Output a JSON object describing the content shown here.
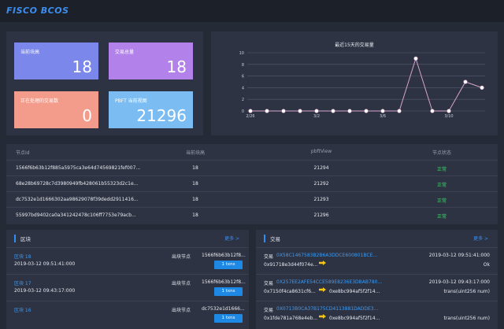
{
  "header": {
    "logo": "FISCO BCOS"
  },
  "cards": [
    {
      "label": "当前块高",
      "value": 18
    },
    {
      "label": "交易总量",
      "value": 18
    },
    {
      "label": "正在处理的交易数",
      "value": 0
    },
    {
      "label": "PBFT 当前视图",
      "value": 21296
    }
  ],
  "chart_data": {
    "type": "line",
    "title": "最近15天的交易量",
    "categories": [
      "2/26",
      null,
      null,
      null,
      "3/2",
      null,
      null,
      null,
      "3/6",
      null,
      null,
      null,
      "3/10",
      null,
      null
    ],
    "values": [
      0,
      0,
      0,
      0,
      0,
      0,
      0,
      0,
      0,
      0,
      9,
      0,
      0,
      5,
      4
    ],
    "color": "#d7a4cc",
    "ylim": [
      0,
      10
    ],
    "yticks": [
      0,
      2,
      4,
      6,
      8,
      10
    ],
    "grid": true
  },
  "node_table": {
    "columns": [
      "节点Id",
      "当前块高",
      "pbftView",
      "节点状态"
    ],
    "rows": [
      [
        "1566f6b63b12f885a5975ca3e64d74569821fef007...",
        18,
        21294,
        "正常"
      ],
      [
        "68e28b69728c7d3980949fb428061b55323d2c1e...",
        18,
        21292,
        "正常"
      ],
      [
        "dc7532e1d1666302aa98629078f39dedd2911416...",
        18,
        21293,
        "正常"
      ],
      [
        "55997bd9402ca0a341242478c106ff7753e79acb...",
        18,
        21296,
        "正常"
      ]
    ]
  },
  "blocks": {
    "title": "区块",
    "more": "更多 >",
    "items": [
      {
        "name": "区块 18",
        "time": "2019-03-12 09:51:41:000",
        "producer_label": "出块节点",
        "producer": "1566f6b63b12f8...",
        "txns": "1 txns"
      },
      {
        "name": "区块 17",
        "time": "2019-03-12 09:43:17:000",
        "producer_label": "出块节点",
        "producer": "1566f6b63b12f8...",
        "txns": "1 txns"
      },
      {
        "name": "区块 16",
        "producer_label": "出块节点",
        "producer": "dc7532e1d1666...",
        "txns": "1 txns"
      }
    ]
  },
  "transactions": {
    "title": "交易",
    "more": "更多 >",
    "items": [
      {
        "label": "交易",
        "hash": "0X58C1467583B2B6A3DDCE600801BCE...",
        "time": "2019-03-12 09:51:41:000",
        "from": "0x91718e3d44f074e...",
        "method": "Ok"
      },
      {
        "label": "交易",
        "hash": "0X257EE2AFE54CCE589E8236E3DBAB780...",
        "time": "2019-03-12 09:43:17:000",
        "from": "0x7150f4ca8631cf6...",
        "to": "0xe8bc994af5f2f14...",
        "method": "trans(uint256 num)"
      },
      {
        "label": "交易",
        "hash": "0X0713B0CA37B175CD4113881DADDE3...",
        "from": "0x1fde781a768e4eb...",
        "to": "0xe8bc994af5f2f14...",
        "method": "trans(uint256 num)"
      }
    ]
  }
}
